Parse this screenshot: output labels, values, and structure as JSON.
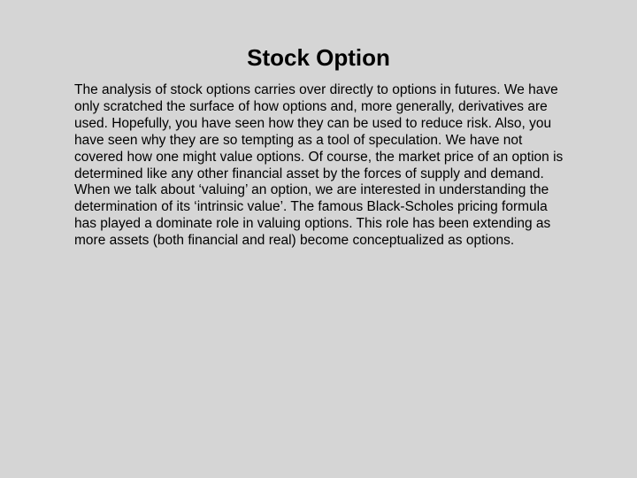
{
  "slide": {
    "title": "Stock Option",
    "body": "The analysis of stock options carries over directly to options in futures.  We have only scratched the surface of how options and, more generally, derivatives are used.  Hopefully, you have seen how they can be used to reduce risk.  Also, you have seen why they are so tempting as a tool of speculation.  We have not covered how one might value options.  Of course, the market price of an option is determined like any other financial asset by the forces of supply and demand.  When we talk about ‘valuing’ an option, we are interested in understanding the determination of its ‘intrinsic value’.  The famous Black-Scholes pricing formula has played a dominate role in valuing options.  This role has been extending as more assets (both financial and real) become conceptualized as options.",
    "background_color": "#d5d5d5",
    "text_color": "#000000",
    "title_font": "Arial Black",
    "body_font": "Arial",
    "title_fontsize": 26,
    "body_fontsize": 15.5
  }
}
